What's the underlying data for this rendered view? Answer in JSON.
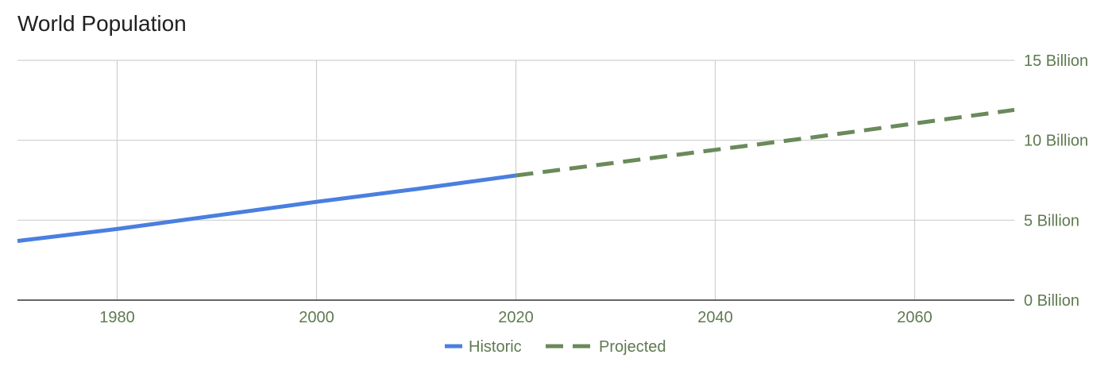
{
  "chart_data": {
    "type": "line",
    "title": "World Population",
    "xlabel": "",
    "ylabel": "",
    "xlim": [
      1970,
      2070
    ],
    "ylim": [
      0,
      15
    ],
    "x_ticks": [
      1980,
      2000,
      2020,
      2040,
      2060
    ],
    "y_ticks": [
      {
        "value": 0,
        "label": "0 Billion"
      },
      {
        "value": 5,
        "label": "5 Billion"
      },
      {
        "value": 10,
        "label": "10 Billion"
      },
      {
        "value": 15,
        "label": "15 Billion"
      }
    ],
    "y_axis_side": "right",
    "grid": true,
    "legend_position": "bottom",
    "series": [
      {
        "name": "Historic",
        "color": "#4a7fe0",
        "style": "solid",
        "x": [
          1970,
          1980,
          1990,
          2000,
          2010,
          2020
        ],
        "values": [
          3.7,
          4.45,
          5.3,
          6.15,
          6.95,
          7.8
        ]
      },
      {
        "name": "Projected",
        "color": "#6a8a5a",
        "style": "dashed",
        "x": [
          2020,
          2030,
          2040,
          2050,
          2060,
          2070
        ],
        "values": [
          7.8,
          8.6,
          9.4,
          10.2,
          11.05,
          11.9
        ]
      }
    ]
  }
}
